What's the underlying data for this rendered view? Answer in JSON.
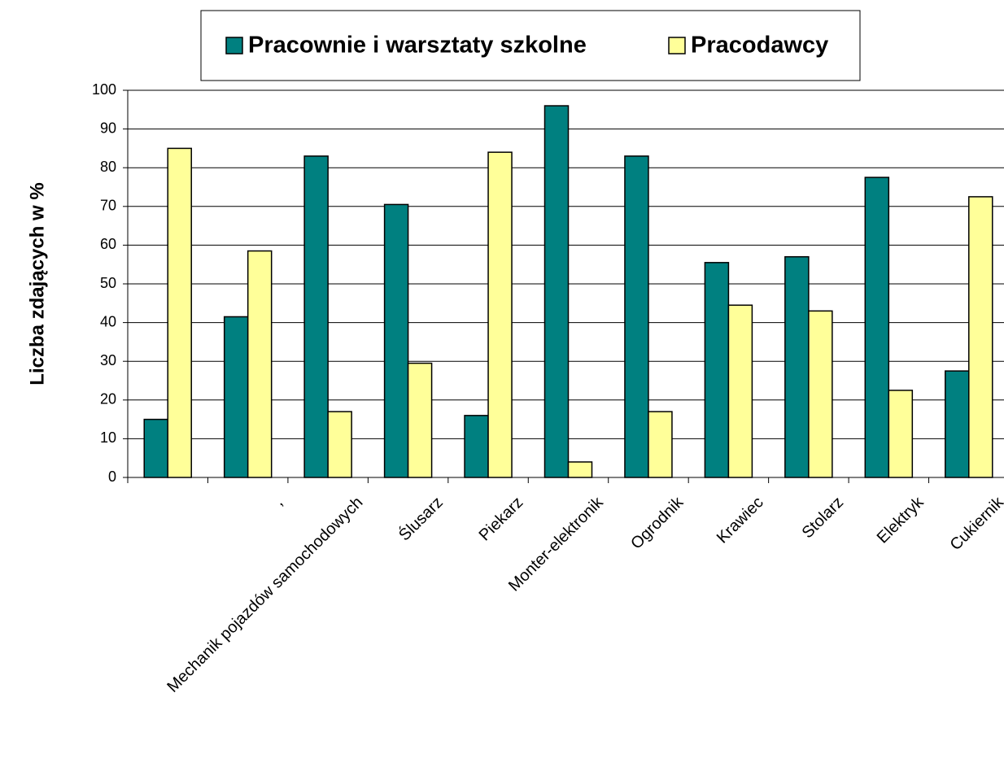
{
  "chart_data": {
    "type": "bar",
    "y_label": "Liczba zdających w %",
    "categories": [
      null,
      ",",
      "Mechanik pojazdów samochodowych",
      "Ślusarz",
      "Piekarz",
      "Monter-elektronik",
      "Ogrodnik",
      "Krawiec",
      "Stolarz",
      "Elektryk",
      "Cukiernik"
    ],
    "series": [
      {
        "name": "Pracownie i warsztaty szkolne",
        "color": "#008080",
        "values": [
          15,
          41.5,
          83,
          70.5,
          16,
          96,
          83,
          55.5,
          57,
          77.5,
          27.5
        ]
      },
      {
        "name": "Pracodawcy",
        "color": "#ffff99",
        "values": [
          85,
          58.5,
          17,
          29.5,
          84,
          4,
          17,
          44.5,
          43,
          22.5,
          72.5
        ]
      }
    ],
    "ylim": [
      0,
      100
    ],
    "yticks": [
      0,
      10,
      20,
      30,
      40,
      50,
      60,
      70,
      80,
      90,
      100
    ],
    "grid": true
  }
}
